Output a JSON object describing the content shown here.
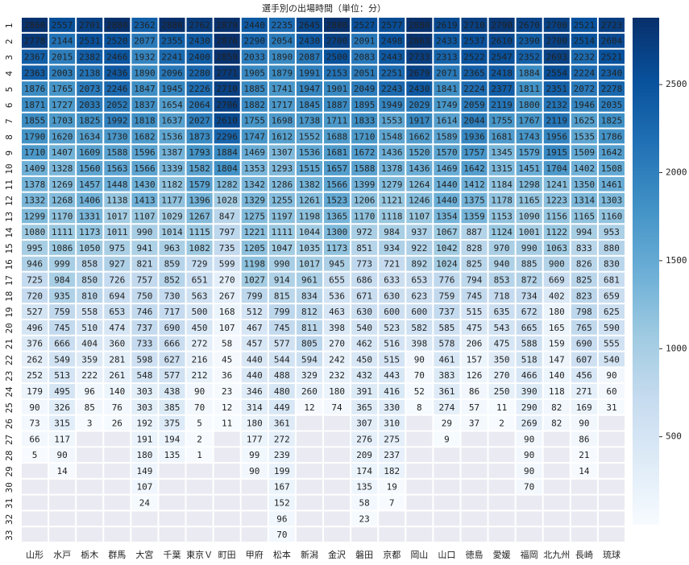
{
  "chart_data": {
    "type": "heatmap",
    "title": "選手別の出場時間（単位：分）",
    "columns": [
      "山形",
      "水戸",
      "栃木",
      "群馬",
      "大宮",
      "千葉",
      "東京Ｖ",
      "町田",
      "甲府",
      "松本",
      "新潟",
      "金沢",
      "磐田",
      "京都",
      "岡山",
      "山口",
      "徳島",
      "愛媛",
      "福岡",
      "北九州",
      "長崎",
      "琉球"
    ],
    "rows": [
      "1",
      "2",
      "3",
      "4",
      "5",
      "6",
      "7",
      "8",
      "9",
      "10",
      "11",
      "12",
      "13",
      "14",
      "15",
      "16",
      "17",
      "18",
      "19",
      "20",
      "21",
      "22",
      "23",
      "24",
      "25",
      "26",
      "27",
      "28",
      "29",
      "30",
      "31",
      "32",
      "33"
    ],
    "values": [
      [
        2860,
        2557,
        2701,
        2880,
        2362,
        2880,
        2762,
        2879,
        2440,
        2235,
        2645,
        2880,
        2527,
        2577,
        2880,
        2619,
        2710,
        2790,
        2670,
        2700,
        2521,
        2723
      ],
      [
        2778,
        2144,
        2531,
        2520,
        2077,
        2355,
        2430,
        2876,
        2290,
        2054,
        2430,
        2700,
        2091,
        2498,
        2863,
        2433,
        2537,
        2610,
        2390,
        2700,
        2514,
        2604
      ],
      [
        2367,
        2015,
        2382,
        2466,
        1932,
        2241,
        2400,
        2859,
        2033,
        1890,
        2087,
        2500,
        2083,
        2443,
        2733,
        2313,
        2522,
        2547,
        2352,
        2693,
        2232,
        2521
      ],
      [
        2363,
        2003,
        2138,
        2436,
        1890,
        2096,
        2280,
        2771,
        1905,
        1879,
        1991,
        2153,
        2051,
        2251,
        2679,
        2071,
        2365,
        2418,
        1884,
        2554,
        2224,
        2340
      ],
      [
        1876,
        1765,
        2073,
        2246,
        1847,
        1945,
        2226,
        2710,
        1885,
        1741,
        1947,
        1901,
        2049,
        2243,
        2430,
        1841,
        2224,
        2377,
        1811,
        2351,
        2072,
        2278
      ],
      [
        1871,
        1727,
        2033,
        2052,
        1837,
        1654,
        2064,
        2706,
        1882,
        1717,
        1845,
        1887,
        1895,
        1949,
        2029,
        1749,
        2059,
        2119,
        1800,
        2132,
        1946,
        2035
      ],
      [
        1855,
        1703,
        1825,
        1992,
        1818,
        1637,
        2027,
        2610,
        1755,
        1698,
        1738,
        1711,
        1833,
        1553,
        1917,
        1614,
        2044,
        1755,
        1767,
        2119,
        1625,
        1825
      ],
      [
        1790,
        1620,
        1634,
        1730,
        1682,
        1536,
        1873,
        2296,
        1747,
        1612,
        1552,
        1688,
        1710,
        1548,
        1662,
        1589,
        1936,
        1681,
        1743,
        1956,
        1535,
        1786
      ],
      [
        1710,
        1407,
        1609,
        1588,
        1596,
        1387,
        1793,
        1884,
        1469,
        1307,
        1536,
        1681,
        1672,
        1436,
        1520,
        1570,
        1757,
        1345,
        1579,
        1915,
        1509,
        1642
      ],
      [
        1409,
        1328,
        1560,
        1563,
        1566,
        1339,
        1582,
        1804,
        1353,
        1293,
        1515,
        1657,
        1588,
        1378,
        1436,
        1469,
        1642,
        1315,
        1451,
        1704,
        1402,
        1508
      ],
      [
        1378,
        1269,
        1457,
        1448,
        1430,
        1182,
        1579,
        1282,
        1342,
        1286,
        1382,
        1566,
        1399,
        1279,
        1264,
        1440,
        1412,
        1184,
        1298,
        1241,
        1350,
        1461
      ],
      [
        1332,
        1268,
        1406,
        1138,
        1413,
        1177,
        1396,
        1028,
        1329,
        1255,
        1261,
        1523,
        1206,
        1121,
        1246,
        1440,
        1375,
        1178,
        1165,
        1223,
        1314,
        1303
      ],
      [
        1299,
        1170,
        1331,
        1017,
        1107,
        1029,
        1267,
        847,
        1275,
        1197,
        1198,
        1365,
        1170,
        1118,
        1107,
        1354,
        1359,
        1153,
        1090,
        1156,
        1165,
        1160
      ],
      [
        1080,
        1111,
        1173,
        1011,
        990,
        1014,
        1115,
        797,
        1221,
        1111,
        1044,
        1300,
        972,
        984,
        937,
        1067,
        887,
        1124,
        1001,
        1122,
        994,
        953
      ],
      [
        995,
        1086,
        1050,
        975,
        941,
        963,
        1082,
        735,
        1205,
        1047,
        1035,
        1173,
        851,
        934,
        922,
        1042,
        828,
        970,
        990,
        1063,
        833,
        880
      ],
      [
        946,
        999,
        858,
        927,
        821,
        859,
        729,
        599,
        1198,
        990,
        1017,
        945,
        773,
        721,
        892,
        1024,
        825,
        940,
        885,
        900,
        826,
        830
      ],
      [
        725,
        984,
        850,
        726,
        757,
        852,
        651,
        270,
        1027,
        914,
        961,
        655,
        686,
        633,
        653,
        776,
        794,
        853,
        872,
        669,
        825,
        681
      ],
      [
        720,
        935,
        810,
        694,
        750,
        730,
        563,
        267,
        799,
        815,
        834,
        536,
        671,
        630,
        623,
        759,
        745,
        718,
        734,
        402,
        823,
        659
      ],
      [
        527,
        759,
        558,
        653,
        746,
        717,
        500,
        168,
        512,
        799,
        812,
        463,
        630,
        600,
        600,
        737,
        515,
        635,
        672,
        180,
        798,
        625
      ],
      [
        496,
        745,
        510,
        474,
        737,
        690,
        450,
        107,
        467,
        745,
        811,
        398,
        540,
        523,
        582,
        585,
        475,
        543,
        665,
        165,
        765,
        590
      ],
      [
        376,
        666,
        404,
        360,
        733,
        666,
        272,
        58,
        457,
        577,
        805,
        270,
        462,
        516,
        398,
        578,
        206,
        475,
        588,
        159,
        690,
        555
      ],
      [
        262,
        549,
        359,
        281,
        598,
        627,
        216,
        45,
        440,
        544,
        594,
        242,
        450,
        515,
        90,
        461,
        157,
        350,
        518,
        147,
        607,
        540
      ],
      [
        252,
        513,
        222,
        261,
        548,
        577,
        212,
        36,
        440,
        488,
        329,
        232,
        432,
        443,
        70,
        383,
        126,
        270,
        466,
        140,
        456,
        90
      ],
      [
        179,
        495,
        96,
        140,
        303,
        438,
        90,
        23,
        346,
        480,
        260,
        180,
        391,
        416,
        52,
        361,
        86,
        250,
        390,
        118,
        271,
        60
      ],
      [
        90,
        326,
        85,
        76,
        303,
        385,
        70,
        12,
        314,
        449,
        12,
        74,
        365,
        330,
        8,
        274,
        57,
        11,
        290,
        82,
        169,
        31
      ],
      [
        73,
        315,
        3,
        26,
        192,
        375,
        5,
        11,
        180,
        361,
        null,
        null,
        307,
        310,
        null,
        29,
        37,
        2,
        269,
        82,
        90,
        null
      ],
      [
        66,
        117,
        null,
        null,
        191,
        194,
        2,
        null,
        177,
        272,
        null,
        null,
        276,
        275,
        null,
        9,
        null,
        null,
        90,
        null,
        86,
        null
      ],
      [
        5,
        90,
        null,
        null,
        180,
        135,
        1,
        null,
        99,
        239,
        null,
        null,
        209,
        237,
        null,
        null,
        null,
        null,
        90,
        null,
        21,
        null
      ],
      [
        null,
        14,
        null,
        null,
        149,
        null,
        null,
        null,
        90,
        199,
        null,
        null,
        174,
        182,
        null,
        null,
        null,
        null,
        90,
        null,
        14,
        null
      ],
      [
        null,
        null,
        null,
        null,
        107,
        null,
        null,
        null,
        null,
        167,
        null,
        null,
        135,
        19,
        null,
        null,
        null,
        null,
        70,
        null,
        null,
        null
      ],
      [
        null,
        null,
        null,
        null,
        24,
        null,
        null,
        null,
        null,
        152,
        null,
        null,
        58,
        7,
        null,
        null,
        null,
        null,
        null,
        null,
        null,
        null
      ],
      [
        null,
        null,
        null,
        null,
        null,
        null,
        null,
        null,
        null,
        96,
        null,
        null,
        23,
        null,
        null,
        null,
        null,
        null,
        null,
        null,
        null,
        null
      ],
      [
        null,
        null,
        null,
        null,
        null,
        null,
        null,
        null,
        null,
        70,
        null,
        null,
        null,
        null,
        null,
        null,
        null,
        null,
        null,
        null,
        null,
        null
      ]
    ],
    "colormap": "Blues",
    "clim": [
      0,
      2880
    ],
    "cticks": [
      500,
      1000,
      1500,
      2000,
      2500
    ]
  }
}
